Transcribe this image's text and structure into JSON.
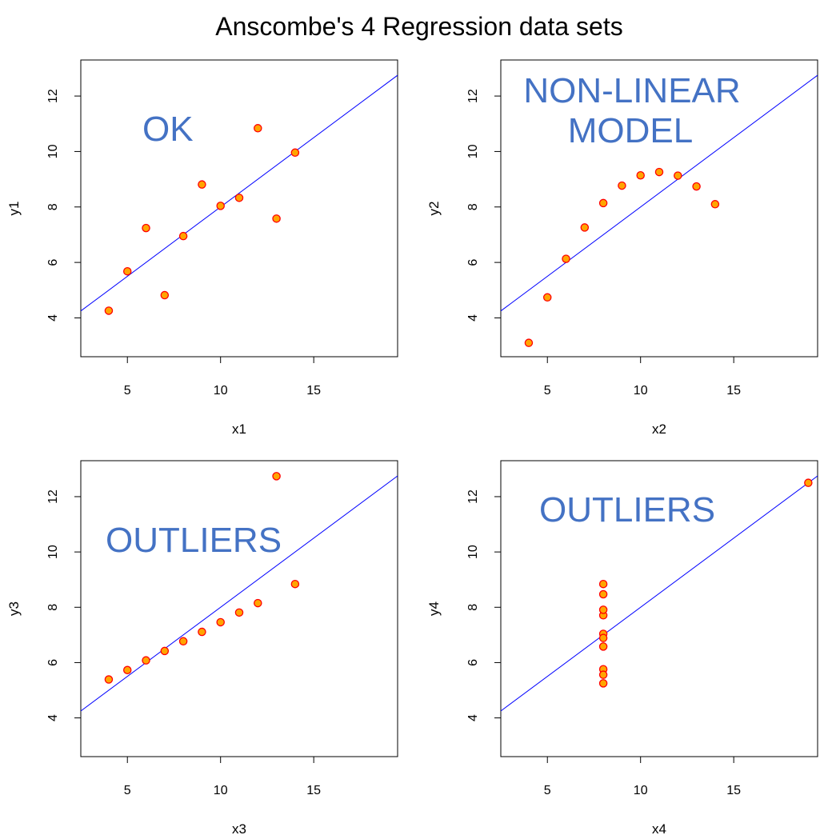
{
  "title": "Anscombe's 4 Regression data sets",
  "colors": {
    "point_fill": "#ffa500",
    "point_stroke": "#ff0000",
    "fit_line": "#0000ff",
    "annotation": "#4472c4",
    "frame": "#000000"
  },
  "chart_data": [
    {
      "type": "scatter",
      "xlabel": "x1",
      "ylabel": "y1",
      "xlim": [
        2.5,
        19.5
      ],
      "ylim": [
        2.6,
        13.3
      ],
      "xticks": [
        5,
        10,
        15
      ],
      "yticks": [
        4,
        6,
        8,
        10,
        12
      ],
      "annotation": [
        "OK"
      ],
      "x": [
        10,
        8,
        13,
        9,
        11,
        14,
        6,
        4,
        12,
        7,
        5
      ],
      "y": [
        8.04,
        6.95,
        7.58,
        8.81,
        8.33,
        9.96,
        7.24,
        4.26,
        10.84,
        4.82,
        5.68
      ],
      "fit": {
        "intercept": 3.0,
        "slope": 0.5
      }
    },
    {
      "type": "scatter",
      "xlabel": "x2",
      "ylabel": "y2",
      "xlim": [
        2.5,
        19.5
      ],
      "ylim": [
        2.6,
        13.3
      ],
      "xticks": [
        5,
        10,
        15
      ],
      "yticks": [
        4,
        6,
        8,
        10,
        12
      ],
      "annotation": [
        "NON-LINEAR",
        "MODEL"
      ],
      "x": [
        10,
        8,
        13,
        9,
        11,
        14,
        6,
        4,
        12,
        7,
        5
      ],
      "y": [
        9.14,
        8.14,
        8.74,
        8.77,
        9.26,
        8.1,
        6.13,
        3.1,
        9.13,
        7.26,
        4.74
      ],
      "fit": {
        "intercept": 3.0,
        "slope": 0.5
      }
    },
    {
      "type": "scatter",
      "xlabel": "x3",
      "ylabel": "y3",
      "xlim": [
        2.5,
        19.5
      ],
      "ylim": [
        2.6,
        13.3
      ],
      "xticks": [
        5,
        10,
        15
      ],
      "yticks": [
        4,
        6,
        8,
        10,
        12
      ],
      "annotation": [
        "OUTLIERS"
      ],
      "x": [
        10,
        8,
        13,
        9,
        11,
        14,
        6,
        4,
        12,
        7,
        5
      ],
      "y": [
        7.46,
        6.77,
        12.74,
        7.11,
        7.81,
        8.84,
        6.08,
        5.39,
        8.15,
        6.42,
        5.73
      ],
      "fit": {
        "intercept": 3.0,
        "slope": 0.5
      }
    },
    {
      "type": "scatter",
      "xlabel": "x4",
      "ylabel": "y4",
      "xlim": [
        2.5,
        19.5
      ],
      "ylim": [
        2.6,
        13.3
      ],
      "xticks": [
        5,
        10,
        15
      ],
      "yticks": [
        4,
        6,
        8,
        10,
        12
      ],
      "annotation": [
        "OUTLIERS"
      ],
      "x": [
        8,
        8,
        8,
        8,
        8,
        8,
        8,
        19,
        8,
        8,
        8
      ],
      "y": [
        6.58,
        5.76,
        7.71,
        8.84,
        8.47,
        7.04,
        5.25,
        12.5,
        5.56,
        7.91,
        6.89
      ],
      "fit": {
        "intercept": 3.0,
        "slope": 0.5
      }
    }
  ]
}
